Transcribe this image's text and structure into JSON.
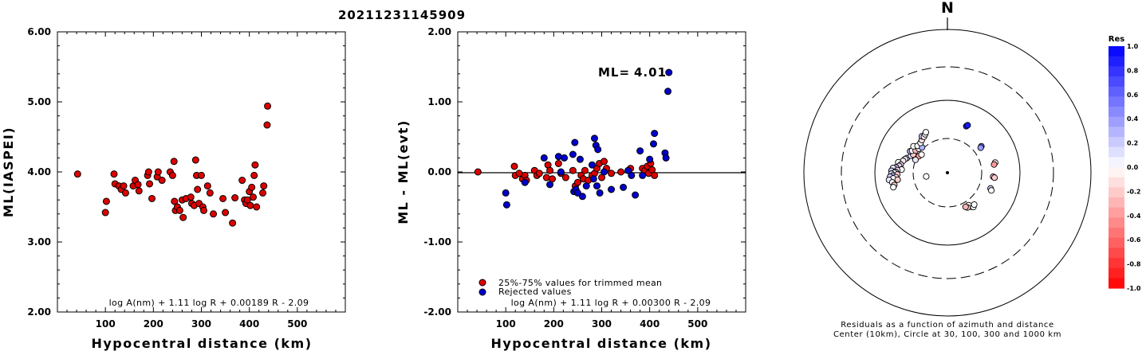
{
  "title": "20211231145909",
  "chart_data": [
    {
      "type": "scatter",
      "xlabel": "Hypocentral distance (km)",
      "ylabel": "ML(IASPEI)",
      "xlim": [
        0,
        600
      ],
      "ylim": [
        2.0,
        6.0
      ],
      "xticks": [
        "100",
        "200",
        "300",
        "400",
        "500"
      ],
      "yticks": [
        "2.00",
        "3.00",
        "4.00",
        "5.00",
        "6.00"
      ],
      "annotation": "log A(nm) + 1.11 log R + 0.00189 R - 2.09",
      "marker_color": "#dd0000",
      "points": [
        [
          42,
          3.97
        ],
        [
          100,
          3.42
        ],
        [
          102,
          3.58
        ],
        [
          118,
          3.97
        ],
        [
          120,
          3.83
        ],
        [
          128,
          3.8
        ],
        [
          133,
          3.75
        ],
        [
          138,
          3.8
        ],
        [
          142,
          3.7
        ],
        [
          158,
          3.8
        ],
        [
          162,
          3.88
        ],
        [
          168,
          3.82
        ],
        [
          170,
          3.73
        ],
        [
          188,
          3.95
        ],
        [
          190,
          4.0
        ],
        [
          192,
          3.83
        ],
        [
          197,
          3.62
        ],
        [
          208,
          3.93
        ],
        [
          210,
          4.0
        ],
        [
          218,
          3.88
        ],
        [
          235,
          4.0
        ],
        [
          240,
          3.95
        ],
        [
          243,
          4.15
        ],
        [
          244,
          3.58
        ],
        [
          246,
          3.45
        ],
        [
          250,
          3.5
        ],
        [
          255,
          3.45
        ],
        [
          260,
          3.6
        ],
        [
          262,
          3.35
        ],
        [
          268,
          3.62
        ],
        [
          278,
          3.64
        ],
        [
          280,
          3.55
        ],
        [
          285,
          3.52
        ],
        [
          288,
          4.17
        ],
        [
          290,
          3.95
        ],
        [
          292,
          3.75
        ],
        [
          295,
          3.55
        ],
        [
          300,
          3.95
        ],
        [
          303,
          3.5
        ],
        [
          305,
          3.45
        ],
        [
          313,
          3.8
        ],
        [
          318,
          3.7
        ],
        [
          325,
          3.4
        ],
        [
          345,
          3.62
        ],
        [
          350,
          3.42
        ],
        [
          365,
          3.27
        ],
        [
          370,
          3.63
        ],
        [
          385,
          3.88
        ],
        [
          390,
          3.6
        ],
        [
          393,
          3.55
        ],
        [
          396,
          3.6
        ],
        [
          400,
          3.72
        ],
        [
          402,
          3.52
        ],
        [
          405,
          3.78
        ],
        [
          408,
          3.64
        ],
        [
          410,
          3.95
        ],
        [
          412,
          4.1
        ],
        [
          415,
          3.5
        ],
        [
          428,
          3.7
        ],
        [
          430,
          3.8
        ],
        [
          437,
          4.67
        ],
        [
          438,
          4.94
        ]
      ]
    },
    {
      "type": "scatter",
      "xlabel": "Hypocentral distance (km)",
      "ylabel": "ML - ML(evt)",
      "xlim": [
        0,
        600
      ],
      "ylim": [
        -2.0,
        2.0
      ],
      "xticks": [
        "100",
        "200",
        "300",
        "400",
        "500"
      ],
      "yticks": [
        "-2.00",
        "-1.00",
        "0.00",
        "1.00",
        "2.00"
      ],
      "ml_label": "ML=",
      "ml_value": "4.01",
      "legend": [
        "25%-75% values for trimmed mean",
        "Rejected values"
      ],
      "legend_colors": [
        "#dd0000",
        "#0000cc"
      ],
      "annotation": "log A(nm) + 1.11 log R + 0.00300 R - 2.09",
      "trimmed": [
        [
          42,
          0.0
        ],
        [
          118,
          0.08
        ],
        [
          120,
          -0.05
        ],
        [
          128,
          -0.02
        ],
        [
          135,
          -0.1
        ],
        [
          140,
          -0.05
        ],
        [
          143,
          -0.12
        ],
        [
          160,
          0.02
        ],
        [
          165,
          -0.05
        ],
        [
          170,
          -0.02
        ],
        [
          185,
          -0.08
        ],
        [
          188,
          0.1
        ],
        [
          192,
          0.02
        ],
        [
          197,
          -0.1
        ],
        [
          210,
          0.12
        ],
        [
          215,
          -0.02
        ],
        [
          225,
          -0.08
        ],
        [
          240,
          0.02
        ],
        [
          245,
          -0.2
        ],
        [
          250,
          -0.15
        ],
        [
          257,
          -0.05
        ],
        [
          262,
          -0.1
        ],
        [
          265,
          0.02
        ],
        [
          272,
          -0.12
        ],
        [
          280,
          -0.05
        ],
        [
          285,
          -0.02
        ],
        [
          290,
          0.05
        ],
        [
          295,
          0.12
        ],
        [
          300,
          -0.08
        ],
        [
          305,
          0.15
        ],
        [
          310,
          0.05
        ],
        [
          320,
          -0.02
        ],
        [
          340,
          0.0
        ],
        [
          360,
          0.05
        ],
        [
          385,
          0.05
        ],
        [
          390,
          0.02
        ],
        [
          395,
          0.08
        ],
        [
          398,
          -0.02
        ],
        [
          402,
          0.12
        ],
        [
          405,
          0.03
        ],
        [
          410,
          -0.05
        ]
      ],
      "rejected": [
        [
          100,
          -0.3
        ],
        [
          102,
          -0.47
        ],
        [
          140,
          -0.15
        ],
        [
          180,
          0.2
        ],
        [
          192,
          -0.18
        ],
        [
          210,
          0.22
        ],
        [
          215,
          0.0
        ],
        [
          222,
          0.2
        ],
        [
          240,
          0.25
        ],
        [
          242,
          -0.28
        ],
        [
          244,
          0.42
        ],
        [
          246,
          -0.25
        ],
        [
          250,
          -0.3
        ],
        [
          255,
          0.18
        ],
        [
          260,
          -0.35
        ],
        [
          268,
          -0.2
        ],
        [
          280,
          0.1
        ],
        [
          283,
          -0.1
        ],
        [
          285,
          0.48
        ],
        [
          288,
          0.38
        ],
        [
          290,
          -0.2
        ],
        [
          292,
          0.32
        ],
        [
          296,
          -0.3
        ],
        [
          305,
          0.0
        ],
        [
          320,
          -0.25
        ],
        [
          345,
          -0.22
        ],
        [
          355,
          0.02
        ],
        [
          362,
          -0.05
        ],
        [
          370,
          -0.33
        ],
        [
          380,
          0.3
        ],
        [
          385,
          -0.05
        ],
        [
          400,
          0.18
        ],
        [
          408,
          0.4
        ],
        [
          410,
          0.55
        ],
        [
          432,
          0.27
        ],
        [
          434,
          0.2
        ],
        [
          438,
          1.15
        ],
        [
          440,
          1.42
        ]
      ]
    },
    {
      "type": "polar-scatter",
      "north_label": "N",
      "caption_line1": "Residuals as a function of azimuth and distance",
      "caption_line2": "Center (10km), Circle at 30, 100, 300 and 1000 km",
      "colorbar_title": "Res",
      "colorbar_ticks": [
        "1.0",
        "0.8",
        "0.6",
        "0.4",
        "0.2",
        "0.0",
        "-0.2",
        "-0.4",
        "-0.6",
        "-0.8",
        "-1.0"
      ],
      "stations": [
        [
          -70,
          0.3,
          0.2
        ],
        [
          -72,
          0.31,
          0.1
        ],
        [
          -75,
          0.32,
          -0.1
        ],
        [
          -78,
          0.35,
          0.0
        ],
        [
          -80,
          0.33,
          0.2
        ],
        [
          -82,
          0.34,
          -0.2
        ],
        [
          -84,
          0.36,
          0.3
        ],
        [
          -85,
          0.38,
          0.1
        ],
        [
          -86,
          0.32,
          0.0
        ],
        [
          -87,
          0.35,
          -0.1
        ],
        [
          -88,
          0.39,
          0.2
        ],
        [
          -89,
          0.36,
          0.3
        ],
        [
          -90,
          0.37,
          0.0
        ],
        [
          -91,
          0.39,
          0.1
        ],
        [
          -92,
          0.35,
          -0.2
        ],
        [
          -93,
          0.38,
          0.3
        ],
        [
          -94,
          0.4,
          0.2
        ],
        [
          -95,
          0.36,
          -0.1
        ],
        [
          -96,
          0.38,
          0.0
        ],
        [
          -97,
          0.41,
          0.1
        ],
        [
          -98,
          0.35,
          -0.2
        ],
        [
          -100,
          0.39,
          0.0
        ],
        [
          -103,
          0.38,
          -0.2
        ],
        [
          -105,
          0.39,
          0.0
        ],
        [
          -65,
          0.28,
          0.1
        ],
        [
          -62,
          0.27,
          -0.2
        ],
        [
          -60,
          0.3,
          0.3
        ],
        [
          -58,
          0.29,
          0.0
        ],
        [
          -55,
          0.27,
          -0.3
        ],
        [
          -52,
          0.3,
          0.0
        ],
        [
          -50,
          0.26,
          0.1
        ],
        [
          -48,
          0.28,
          0.0
        ],
        [
          -45,
          0.25,
          0.3
        ],
        [
          -42,
          0.28,
          0.0
        ],
        [
          -38,
          0.29,
          -0.1
        ],
        [
          -35,
          0.31,
          0.2
        ],
        [
          -33,
          0.3,
          -0.1
        ],
        [
          -30,
          0.31,
          0.0
        ],
        [
          -28,
          0.32,
          0.0
        ],
        [
          -60,
          0.23,
          -0.4
        ],
        [
          -55,
          0.22,
          0.0
        ],
        [
          -68,
          0.24,
          0.1
        ],
        [
          -100,
          0.15,
          0.0
        ],
        [
          22,
          0.35,
          0.9
        ],
        [
          23,
          0.36,
          0.9
        ],
        [
          52,
          0.3,
          0.6
        ],
        [
          53,
          0.29,
          0.4
        ],
        [
          78,
          0.34,
          -0.1
        ],
        [
          80,
          0.33,
          -0.4
        ],
        [
          95,
          0.32,
          -0.3
        ],
        [
          96,
          0.33,
          -0.2
        ],
        [
          110,
          0.32,
          0.2
        ],
        [
          112,
          0.33,
          0.0
        ],
        [
          145,
          0.29,
          -0.3
        ],
        [
          147,
          0.27,
          0.0
        ],
        [
          150,
          0.28,
          -0.1
        ],
        [
          152,
          0.27,
          -0.3
        ],
        [
          143,
          0.3,
          0.0
        ],
        [
          140,
          0.29,
          0.0
        ]
      ]
    }
  ]
}
